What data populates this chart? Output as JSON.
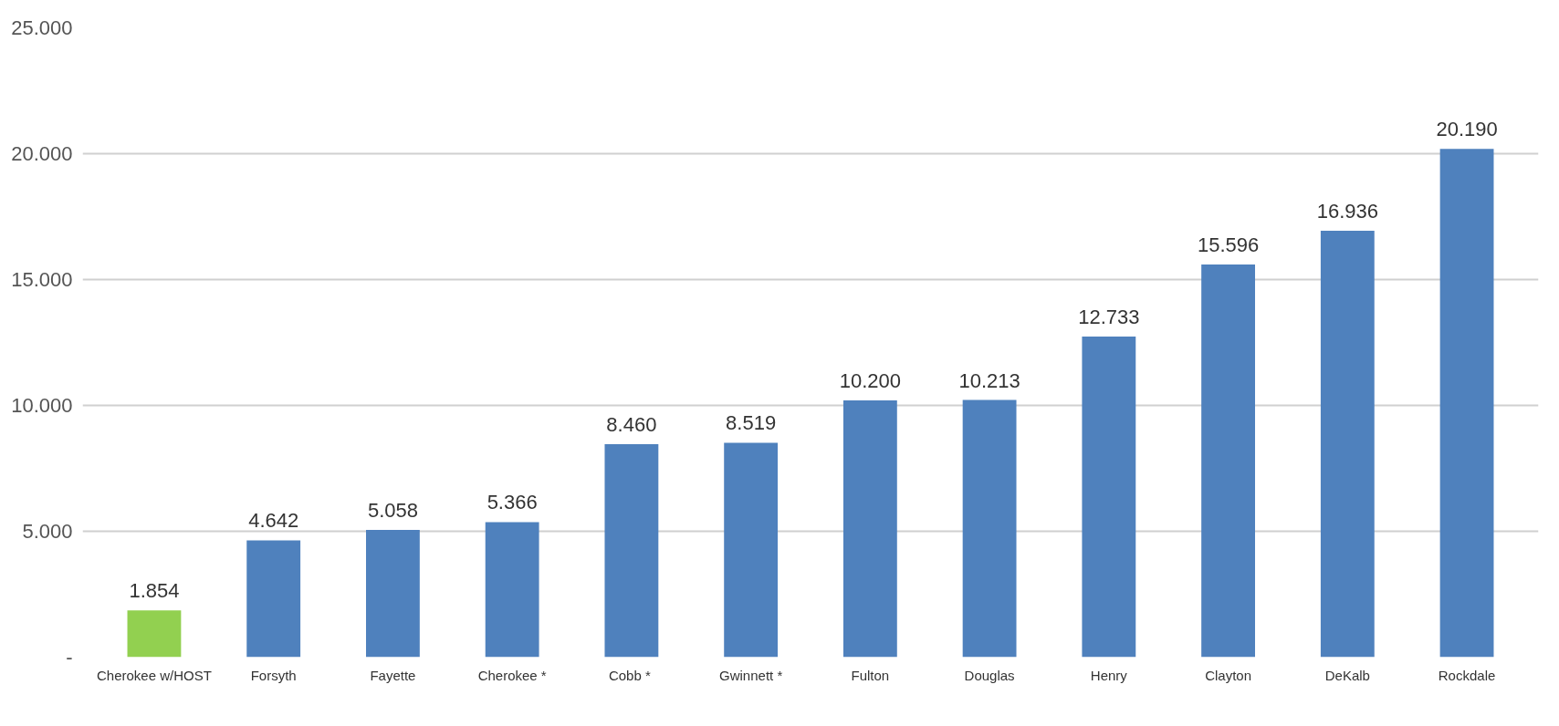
{
  "chart_data": {
    "type": "bar",
    "categories": [
      "Cherokee w/HOST",
      "Forsyth",
      "Fayette",
      "Cherokee *",
      "Cobb  *",
      "Gwinnett *",
      "Fulton",
      "Douglas",
      "Henry",
      "Clayton",
      "DeKalb",
      "Rockdale"
    ],
    "values": [
      1854,
      4642,
      5058,
      5366,
      8460,
      8519,
      10200,
      10213,
      12733,
      15596,
      16936,
      20190
    ],
    "value_labels": [
      "1.854",
      "4.642",
      "5.058",
      "5.366",
      "8.460",
      "8.519",
      "10.200",
      "10.213",
      "12.733",
      "15.596",
      "16.936",
      "20.190"
    ],
    "colors": [
      "#92d050",
      "#4f81bd",
      "#4f81bd",
      "#4f81bd",
      "#4f81bd",
      "#4f81bd",
      "#4f81bd",
      "#4f81bd",
      "#4f81bd",
      "#4f81bd",
      "#4f81bd",
      "#4f81bd"
    ],
    "ylim": [
      0,
      25000
    ],
    "yticks": [
      {
        "value": 0,
        "label": "-"
      },
      {
        "value": 5000,
        "label": "5.000"
      },
      {
        "value": 10000,
        "label": "10.000"
      },
      {
        "value": 15000,
        "label": "15.000"
      },
      {
        "value": 20000,
        "label": "20.000"
      },
      {
        "value": 25000,
        "label": "25.000"
      }
    ],
    "grid": "y"
  }
}
